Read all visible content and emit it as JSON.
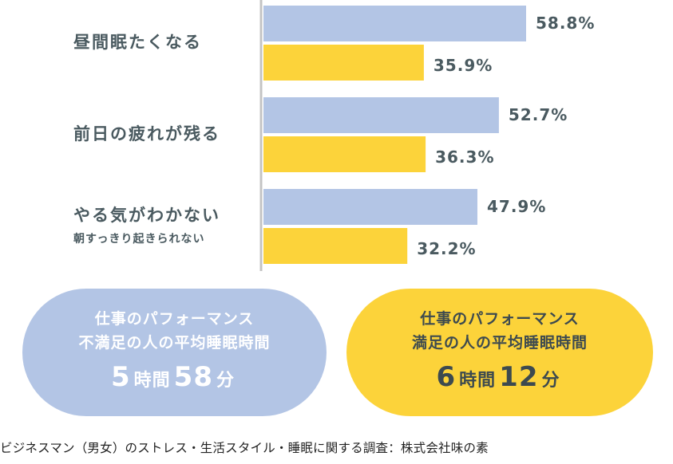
{
  "chart_data": {
    "type": "bar",
    "orientation": "horizontal",
    "categories": [
      {
        "label": "昼間眠たくなる",
        "sublabel": ""
      },
      {
        "label": "前日の疲れが残る",
        "sublabel": ""
      },
      {
        "label": "やる気がわかない",
        "sublabel": "朝すっきり起きられない"
      }
    ],
    "series": [
      {
        "values": [
          58.8,
          52.7,
          47.9
        ],
        "color": "#b3c5e5"
      },
      {
        "values": [
          35.9,
          36.3,
          32.2
        ],
        "color": "#fcd33a"
      }
    ],
    "value_suffix": "%",
    "xlim": [
      0,
      100
    ],
    "grid": false,
    "legend": "none"
  },
  "summary": {
    "dissatisfied": {
      "line1": "仕事のパフォーマンス",
      "line2": "不満足の人の平均睡眠時間",
      "hours": "5",
      "hours_unit": "時間",
      "minutes": "58",
      "minutes_unit": "分",
      "color": "#b3c5e5"
    },
    "satisfied": {
      "line1": "仕事のパフォーマンス",
      "line2": "満足の人の平均睡眠時間",
      "hours": "6",
      "hours_unit": "時間",
      "minutes": "12",
      "minutes_unit": "分",
      "color": "#fcd33a"
    }
  },
  "footer": {
    "source": "ビジネスマン（男女）のストレス・生活スタイル・睡眠に関する調査：株式会社味の素"
  }
}
